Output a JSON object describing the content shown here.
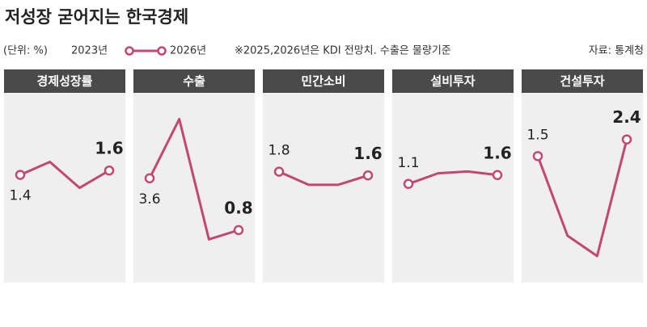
{
  "header": {
    "title": "저성장 굳어지는 한국경제",
    "unit": "(단위: %)",
    "legend_start": "2023년",
    "legend_end": "2026년",
    "note": "※2025,2026년은 KDI 전망치. 수출은 물량기준",
    "source": "자료: 통계청"
  },
  "chart_data": [
    {
      "type": "line",
      "title": "경제성장률",
      "color": "#c4476f",
      "values": [
        1.4,
        2.0,
        0.8,
        1.6
      ],
      "value_labels": [
        "1.4",
        null,
        null,
        "1.6"
      ],
      "ylim": [
        -3.2,
        5.0
      ]
    },
    {
      "type": "line",
      "title": "수출",
      "color": "#c4476f",
      "values": [
        3.6,
        6.8,
        0.3,
        0.8
      ],
      "value_labels": [
        "3.6",
        null,
        null,
        "0.8"
      ],
      "ylim": [
        -1.6,
        8.0
      ]
    },
    {
      "type": "line",
      "title": "민간소비",
      "color": "#c4476f",
      "values": [
        1.8,
        1.1,
        1.1,
        1.6
      ],
      "value_labels": [
        "1.8",
        null,
        null,
        "1.6"
      ],
      "ylim": [
        -3.7,
        5.8
      ]
    },
    {
      "type": "line",
      "title": "설비투자",
      "color": "#c4476f",
      "values": [
        1.1,
        1.7,
        1.8,
        1.6
      ],
      "value_labels": [
        "1.1",
        null,
        null,
        "1.6"
      ],
      "ylim": [
        -4.0,
        6.0
      ]
    },
    {
      "type": "line",
      "title": "건설투자",
      "color": "#c4476f",
      "values": [
        1.5,
        -2.8,
        -3.9,
        2.4
      ],
      "value_labels": [
        "1.5",
        null,
        null,
        "2.4"
      ],
      "ylim": [
        -4.9,
        4.7
      ]
    }
  ]
}
